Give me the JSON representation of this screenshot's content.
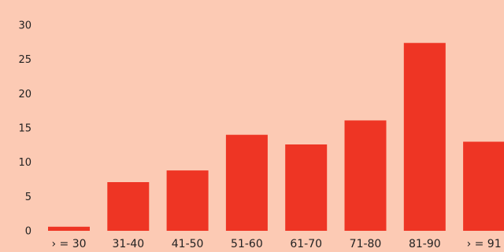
{
  "colors": {
    "background": "#FCCAB4",
    "bar": "#EE3524",
    "text": "#222222"
  },
  "chart_data": {
    "type": "bar",
    "title": "",
    "xlabel": "",
    "ylabel": "",
    "categories": [
      "› = 30",
      "31-40",
      "41-50",
      "51-60",
      "61-70",
      "71-80",
      "81-90",
      "› = 91"
    ],
    "values": [
      0.6,
      7.1,
      8.8,
      14.0,
      12.6,
      16.1,
      27.4,
      13.0
    ],
    "ylim": [
      0,
      30
    ],
    "yticks": [
      0,
      5,
      10,
      15,
      20,
      25,
      30
    ],
    "grid": false,
    "legend": "none"
  }
}
